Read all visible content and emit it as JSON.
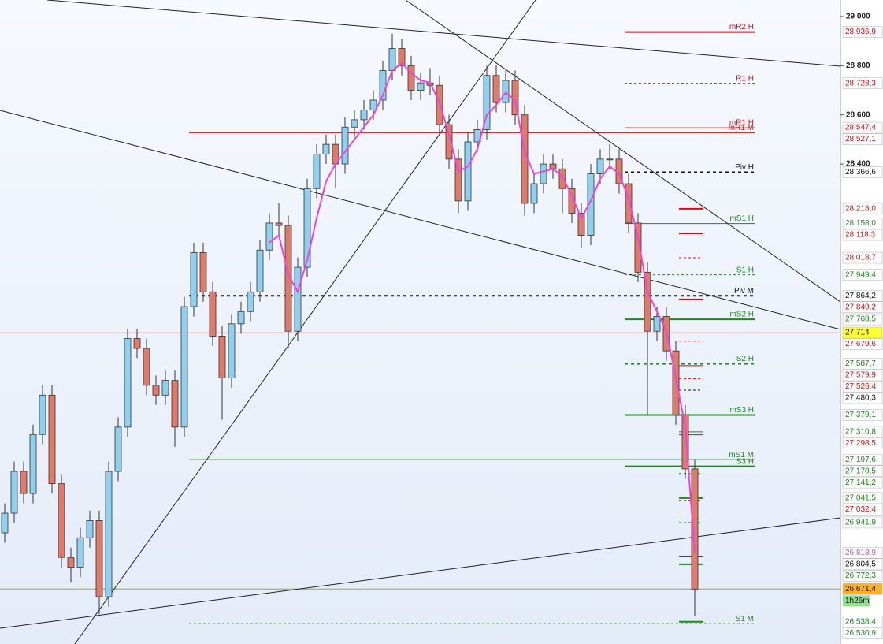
{
  "chart_data": {
    "type": "candlestick",
    "ylim": [
      26448,
      29067
    ],
    "yticks": [
      {
        "value": 29000,
        "label": "29 000"
      },
      {
        "value": 28800,
        "label": "28 800"
      },
      {
        "value": 28600,
        "label": "28 600"
      },
      {
        "value": 28400,
        "label": "28 400"
      }
    ],
    "up_color": "#8fd0ee",
    "down_color": "#e07a6a",
    "open": [
      26900,
      26980,
      27150,
      27060,
      27300,
      27460,
      27100,
      26800,
      26760,
      26880,
      26950,
      26640,
      27150,
      27330,
      27690,
      27650,
      27500,
      27460,
      27520,
      27330,
      27820,
      28040,
      27880,
      27700,
      27530,
      27750,
      27800,
      27880,
      28050,
      28160,
      28150,
      27720,
      27980,
      28300,
      28440,
      28480,
      28400,
      28550,
      28580,
      28620,
      28660,
      28780,
      28870,
      28800,
      28700,
      28730,
      28720,
      28560,
      28420,
      28250,
      28490,
      28540,
      28760,
      28650,
      28740,
      28600,
      28240,
      28320,
      28400,
      28380,
      28300,
      28200,
      28110,
      28360,
      28420,
      28420,
      28320,
      28160,
      27960,
      27720,
      27780,
      27640,
      27380,
      27160
    ],
    "high": [
      27020,
      27190,
      27190,
      27340,
      27500,
      27500,
      27140,
      26840,
      26920,
      26990,
      26990,
      27190,
      27370,
      27730,
      27730,
      27690,
      27540,
      27560,
      27560,
      27860,
      28080,
      28080,
      27920,
      27740,
      27790,
      27840,
      27920,
      28090,
      28200,
      28240,
      28190,
      28020,
      28340,
      28480,
      28520,
      28520,
      28590,
      28620,
      28660,
      28700,
      28820,
      28930,
      28910,
      28840,
      28770,
      28790,
      28760,
      28600,
      28460,
      28530,
      28580,
      28800,
      28800,
      28780,
      28780,
      28640,
      28360,
      28440,
      28440,
      28420,
      28340,
      28240,
      28400,
      28460,
      28480,
      28460,
      28360,
      28200,
      28000,
      27820,
      27820,
      27680,
      27420,
      27200
    ],
    "low": [
      26860,
      26940,
      27020,
      27020,
      27260,
      27060,
      26760,
      26700,
      26720,
      26840,
      26570,
      26600,
      27110,
      27290,
      27610,
      27460,
      27420,
      27420,
      27250,
      27290,
      27780,
      27840,
      27660,
      27360,
      27490,
      27710,
      27760,
      27840,
      28010,
      28110,
      27650,
      27680,
      27940,
      28260,
      28400,
      28300,
      28360,
      28510,
      28540,
      28580,
      28620,
      28740,
      28760,
      28660,
      28660,
      28680,
      28520,
      28380,
      28200,
      28210,
      28450,
      28500,
      28610,
      28610,
      28560,
      28190,
      28200,
      28280,
      28340,
      28200,
      28160,
      28060,
      28070,
      28320,
      28380,
      28280,
      28120,
      27920,
      27380,
      27680,
      27600,
      27340,
      27120,
      26560
    ],
    "close": [
      26980,
      27150,
      27060,
      27300,
      27460,
      27100,
      26800,
      26760,
      26880,
      26950,
      26640,
      27150,
      27330,
      27690,
      27650,
      27500,
      27460,
      27520,
      27330,
      27820,
      28040,
      27880,
      27700,
      27530,
      27750,
      27800,
      27880,
      28050,
      28160,
      28150,
      27720,
      27980,
      28300,
      28440,
      28480,
      28400,
      28550,
      28580,
      28620,
      28660,
      28780,
      28870,
      28800,
      28700,
      28730,
      28720,
      28560,
      28420,
      28250,
      28490,
      28540,
      28760,
      28650,
      28740,
      28600,
      28240,
      28320,
      28400,
      28380,
      28300,
      28200,
      28110,
      28360,
      28420,
      28420,
      28320,
      28160,
      27960,
      27720,
      27780,
      27640,
      27380,
      27160,
      26671.4
    ],
    "ma_color": "#ee44dd",
    "ma": [
      null,
      null,
      null,
      null,
      null,
      null,
      null,
      null,
      null,
      null,
      null,
      null,
      null,
      null,
      null,
      null,
      null,
      null,
      null,
      null,
      null,
      null,
      null,
      null,
      null,
      null,
      null,
      null,
      28080,
      28110,
      27950,
      27880,
      28010,
      28180,
      28330,
      28400,
      28450,
      28500,
      28550,
      28600,
      28680,
      28780,
      28810,
      28770,
      28740,
      28730,
      28650,
      28520,
      28370,
      28390,
      28460,
      28600,
      28640,
      28690,
      28660,
      28450,
      28360,
      28370,
      28380,
      28350,
      28270,
      28180,
      28250,
      28340,
      28390,
      28360,
      28260,
      28100,
      27880,
      27800,
      27720,
      27530,
      27330,
      26818.9
    ],
    "levels": [
      {
        "name": "mR2 H",
        "value": 28936.9,
        "color": "#d01010",
        "style": "thick"
      },
      {
        "name": "R1 H",
        "value": 28728.3,
        "color": "#d01010",
        "style": "dashed"
      },
      {
        "name": "mR1 H",
        "value": 28547.4,
        "color": "#d01010",
        "style": "thin"
      },
      {
        "name": "mR1 M",
        "value": 28527.1,
        "color": "#d01010",
        "style": "thin"
      },
      {
        "name": "Piv H",
        "value": 28366.6,
        "color": "#111111",
        "style": "thickdash"
      },
      {
        "name": "mS1 H",
        "value": 28158.0,
        "color": "#1a8a1a",
        "style": "thin"
      },
      {
        "name": "S1 H",
        "value": 27949.4,
        "color": "#1a8a1a",
        "style": "dashed"
      },
      {
        "name": "Piv M",
        "value": 27864.2,
        "color": "#111111",
        "style": "thickdash"
      },
      {
        "name": "mS2 H",
        "value": 27768.5,
        "color": "#1a8a1a",
        "style": "thick"
      },
      {
        "name": "S2 H",
        "value": 27587.7,
        "color": "#1a8a1a",
        "style": "thickdash"
      },
      {
        "name": "mS3 H",
        "value": 27379.1,
        "color": "#1a8a1a",
        "style": "thick"
      },
      {
        "name": "mS1 M",
        "value": 27197.6,
        "color": "#1a8a1a",
        "style": "thin"
      },
      {
        "name": "S3 H",
        "value": 27170.5,
        "color": "#1a8a1a",
        "style": "thick"
      },
      {
        "name": "S1 M",
        "value": 26530.9,
        "color": "#1a8a1a",
        "style": "dashed"
      }
    ],
    "price_labels": [
      {
        "value": 28936.9,
        "label": "28 936,9",
        "color": "#d01010"
      },
      {
        "value": 28728.3,
        "label": "28 728,3",
        "color": "#d01010"
      },
      {
        "value": 28547.4,
        "label": "28 547,4",
        "color": "#d01010"
      },
      {
        "value": 28527.1,
        "label": "28 527,1",
        "color": "#d01010"
      },
      {
        "value": 28366.6,
        "label": "28 366,6",
        "color": "#111111"
      },
      {
        "value": 28218.0,
        "label": "28 218,0",
        "color": "#d01010",
        "segment": "thick"
      },
      {
        "value": 28158.0,
        "label": "28 158,0",
        "color": "#1a8a1a"
      },
      {
        "value": 28118.3,
        "label": "28 118,3",
        "color": "#d01010",
        "segment": "thick"
      },
      {
        "value": 28018.7,
        "label": "28 018,7",
        "color": "#d01010",
        "segment": "dashed"
      },
      {
        "value": 27949.4,
        "label": "27 949,4",
        "color": "#1a8a1a"
      },
      {
        "value": 27864.2,
        "label": "27 864,2",
        "color": "#111111"
      },
      {
        "value": 27849.2,
        "label": "27 849,2",
        "color": "#d01010",
        "segment": "thick"
      },
      {
        "value": 27768.5,
        "label": "27 768,5",
        "color": "#1a8a1a"
      },
      {
        "value": 27714,
        "label": "27 714",
        "color": "#111111",
        "background": "#ffff33",
        "line": "#f0a0a0"
      },
      {
        "value": 27679.6,
        "label": "27 679,6",
        "color": "#d01010",
        "segment": "dashed"
      },
      {
        "value": 27587.7,
        "label": "27 587,7",
        "color": "#1a8a1a"
      },
      {
        "value": 27579.9,
        "label": "27 579,9",
        "color": "#d01010",
        "segment": "thin"
      },
      {
        "value": 27526.4,
        "label": "27 526,4",
        "color": "#d01010",
        "segment": "dashed"
      },
      {
        "value": 27480.3,
        "label": "27 480,3",
        "color": "#111111",
        "segment": "dashed"
      },
      {
        "value": 27379.1,
        "label": "27 379,1",
        "color": "#1a8a1a"
      },
      {
        "value": 27310.8,
        "label": "27 310,8",
        "color": "#1a8a1a",
        "segment": "thin"
      },
      {
        "value": 27298.5,
        "label": "27 298,5",
        "color": "#d01010",
        "segment": "thin"
      },
      {
        "value": 27197.6,
        "label": "27 197,6",
        "color": "#1a8a1a"
      },
      {
        "value": 27170.5,
        "label": "27 170,5",
        "color": "#1a8a1a"
      },
      {
        "value": 27141.2,
        "label": "27 141,2",
        "color": "#1a8a1a",
        "segment": "dashed"
      },
      {
        "value": 27041.5,
        "label": "27 041,5",
        "color": "#1a8a1a",
        "segment": "thick"
      },
      {
        "value": 27032.4,
        "label": "27 032,4",
        "color": "#d01010",
        "segment": "dashed"
      },
      {
        "value": 26941.9,
        "label": "26 941,9",
        "color": "#1a8a1a",
        "segment": "dashed"
      },
      {
        "value": 26818.9,
        "label": "26 818,9",
        "color": "#ee44dd"
      },
      {
        "value": 26804.5,
        "label": "26 804,5",
        "color": "#111111",
        "segment": "thin"
      },
      {
        "value": 26772.3,
        "label": "26 772,3",
        "color": "#1a8a1a",
        "segment": "thick"
      },
      {
        "value": 26671.4,
        "label": "26 671,4",
        "color": "#111111",
        "background": "#ffb020",
        "line": "#a0a040"
      },
      {
        "value": 26538.4,
        "label": "26 538,4",
        "color": "#1a8a1a",
        "segment": "thick"
      },
      {
        "value": 26530.9,
        "label": "26 530,9",
        "color": "#1a8a1a"
      }
    ],
    "timer": "1h26m",
    "timer_color": "#90e090"
  }
}
